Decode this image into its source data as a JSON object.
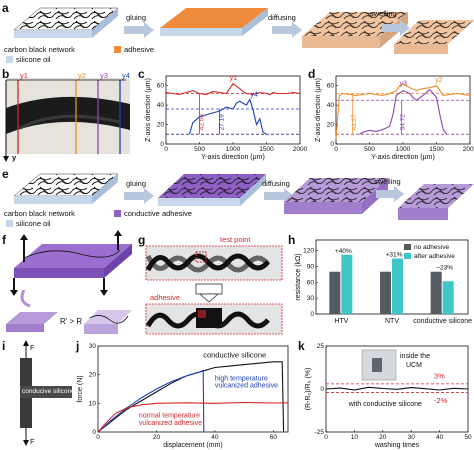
{
  "panel_a": {
    "label": "a",
    "steps": [
      "gluing",
      "diffusing",
      "swelling"
    ],
    "legend": [
      "carbon black network",
      "adhesive",
      "silicone oil"
    ],
    "colors": {
      "adhesive": "#f08a3c",
      "slab": "#c6d7ec",
      "diffused": "#f2c4a0"
    }
  },
  "panel_b": {
    "label": "b",
    "y_markers": [
      "y1",
      "y2",
      "y3",
      "y4"
    ],
    "axis": "y"
  },
  "panel_c": {
    "label": "c",
    "ylabel": "Z-axis direction (μm)",
    "xlabel": "Y-axis direction (μm)",
    "annotations": [
      "y1",
      "y4",
      "42.59",
      "27.19"
    ]
  },
  "panel_d": {
    "label": "d",
    "ylabel": "Z-axis direction (μm)",
    "xlabel": "Y-axis direction (μm)",
    "annotations": [
      "y2",
      "y3",
      "41.27",
      "34.72"
    ]
  },
  "panel_e": {
    "label": "e",
    "steps": [
      "gluing",
      "diffusing",
      "swelling"
    ],
    "legend": [
      "carbon black network",
      "conductive adhesive",
      "silicone oil"
    ]
  },
  "panel_f": {
    "label": "f",
    "relation": "R' > R"
  },
  "panel_g": {
    "label": "g",
    "test_point": "test point",
    "adhesive": "adhesive"
  },
  "panel_h": {
    "label": "h",
    "ylabel": "resistance (kΩ)",
    "legend": [
      "no adhesive",
      "after adhesive"
    ],
    "pct": [
      "+40%",
      "+31%",
      "−23%"
    ]
  },
  "panel_i": {
    "label": "i",
    "force": "F",
    "layers": [
      "silicone",
      "conducive silicone",
      "silicone"
    ]
  },
  "panel_j": {
    "label": "j",
    "ylabel": "force (N)",
    "xlabel": "displacement (mm)",
    "curves": [
      "conductive silicone",
      "high temperature vulcanized adhesive",
      "normal temperature vulcanized adhesive"
    ]
  },
  "panel_k": {
    "label": "k",
    "ylabel": "(R-R₀)/R₀ (%)",
    "xlabel": "washing times",
    "inset": "inside the UCM",
    "curve": "with conductive silicone",
    "pct_hi": "3%",
    "pct_lo": "-2%"
  },
  "chart_data": [
    {
      "type": "line",
      "id": "c",
      "xlabel": "Y-axis direction (μm)",
      "ylabel": "Z-axis direction (μm)",
      "xlim": [
        0,
        2000
      ],
      "ylim": [
        0,
        70
      ],
      "xticks": [
        0,
        500,
        1000,
        1500,
        2000
      ],
      "yticks": [
        0,
        20,
        40,
        60
      ],
      "series": [
        {
          "name": "y1",
          "color": "#d62728",
          "x": [
            0,
            100,
            200,
            300,
            400,
            500,
            600,
            700,
            800,
            900,
            1000,
            1100,
            1150,
            1200,
            1300,
            1400,
            1500,
            1550,
            1600,
            1650,
            1700,
            1800,
            1900,
            2000
          ],
          "y": [
            53,
            52,
            51,
            53,
            55,
            52,
            51,
            54,
            53,
            52,
            62,
            57,
            54,
            52,
            51,
            53,
            52,
            51,
            53,
            52,
            52,
            52,
            53,
            52
          ]
        },
        {
          "name": "y4",
          "color": "#1f3fbf",
          "x": [
            350,
            400,
            500,
            600,
            700,
            800,
            900,
            1000,
            1050,
            1100,
            1200,
            1250,
            1300,
            1350,
            1400,
            1450,
            1500
          ],
          "y": [
            10,
            22,
            28,
            30,
            32,
            34,
            38,
            36,
            42,
            44,
            40,
            46,
            35,
            20,
            26,
            12,
            10
          ]
        }
      ],
      "hlines": [
        {
          "y": 52,
          "color": "#d62728",
          "style": "dash"
        },
        {
          "y": 10,
          "color": "#d62728",
          "style": "dash"
        },
        {
          "y": 10,
          "color": "#1f3fbf",
          "style": "dash"
        },
        {
          "y": 36,
          "color": "#1f3fbf",
          "style": "dash"
        }
      ]
    },
    {
      "type": "line",
      "id": "d",
      "xlabel": "Y-axis direction (μm)",
      "ylabel": "Z-axis direction (μm)",
      "xlim": [
        0,
        2000
      ],
      "ylim": [
        0,
        70
      ],
      "xticks": [
        0,
        500,
        1000,
        1500,
        2000
      ],
      "yticks": [
        0,
        20,
        40,
        60
      ],
      "series": [
        {
          "name": "y2",
          "color": "#f08a24",
          "x": [
            0,
            50,
            100,
            200,
            300,
            400,
            500,
            600,
            700,
            800,
            900,
            950,
            1000,
            1100,
            1200,
            1300,
            1400,
            1500,
            1550,
            1600,
            1700,
            1800,
            1900,
            2000
          ],
          "y": [
            5,
            50,
            52,
            51,
            50,
            51,
            52,
            51,
            50,
            52,
            55,
            60,
            62,
            58,
            55,
            57,
            58,
            60,
            55,
            50,
            51,
            52,
            51,
            50
          ]
        },
        {
          "name": "y3",
          "color": "#8e44ad",
          "x": [
            350,
            400,
            500,
            600,
            700,
            800,
            850,
            900,
            1000,
            1100,
            1150,
            1200,
            1300,
            1400,
            1450,
            1500,
            1550,
            1600,
            1650
          ],
          "y": [
            10,
            12,
            14,
            13,
            15,
            18,
            30,
            50,
            55,
            52,
            48,
            45,
            50,
            56,
            52,
            48,
            30,
            15,
            10
          ]
        }
      ],
      "hlines": [
        {
          "y": 52,
          "color": "#f08a24",
          "style": "dash"
        },
        {
          "y": 10,
          "color": "#f08a24",
          "style": "dash"
        },
        {
          "y": 10,
          "color": "#8e44ad",
          "style": "dash"
        },
        {
          "y": 45,
          "color": "#8e44ad",
          "style": "dash"
        }
      ]
    },
    {
      "type": "bar",
      "id": "h",
      "ylabel": "resistance (kΩ)",
      "ylim": [
        0,
        140
      ],
      "yticks": [
        0,
        30,
        60,
        90,
        120
      ],
      "categories": [
        "HTV",
        "NTV",
        "conductive silicone"
      ],
      "series": [
        {
          "name": "no adhesive",
          "color": "#555a60",
          "values": [
            80,
            80,
            80
          ]
        },
        {
          "name": "after adhesive",
          "color": "#3fc6c6",
          "values": [
            112,
            105,
            62
          ]
        }
      ],
      "labels": [
        "+40%",
        "+31%",
        "−23%"
      ]
    },
    {
      "type": "line",
      "id": "j",
      "xlabel": "displacement (mm)",
      "ylabel": "force (N)",
      "xlim": [
        0,
        65
      ],
      "ylim": [
        0,
        30
      ],
      "xticks": [
        0,
        20,
        40,
        60
      ],
      "yticks": [
        0,
        10,
        20,
        30
      ],
      "series": [
        {
          "name": "conductive silicone",
          "color": "#111111",
          "x": [
            0,
            5,
            10,
            15,
            20,
            25,
            30,
            35,
            40,
            45,
            50,
            55,
            60,
            63,
            63.5
          ],
          "y": [
            0,
            4,
            8,
            11,
            14,
            17,
            19.5,
            21,
            22.5,
            23,
            23.5,
            24,
            24.5,
            24.5,
            0
          ]
        },
        {
          "name": "high temperature vulcanized adhesive",
          "color": "#1f3fbf",
          "x": [
            0,
            5,
            10,
            15,
            20,
            25,
            30,
            35,
            36,
            36.2
          ],
          "y": [
            0,
            4.5,
            8.5,
            12,
            15,
            17.5,
            19.5,
            21,
            21.5,
            0
          ]
        },
        {
          "name": "normal temperature vulcanized adhesive",
          "color": "#d62728",
          "x": [
            0,
            3,
            6,
            10,
            15,
            20,
            30,
            40,
            50,
            60,
            65
          ],
          "y": [
            0,
            3.5,
            6.5,
            8.5,
            9.5,
            10,
            10.2,
            10,
            10.3,
            10.1,
            10.2
          ]
        }
      ]
    },
    {
      "type": "line",
      "id": "k",
      "xlabel": "washing times",
      "ylabel": "(R-R₀)/R₀ (%)",
      "xlim": [
        0,
        50
      ],
      "ylim": [
        -25,
        25
      ],
      "xticks": [
        0,
        10,
        20,
        30,
        40,
        50
      ],
      "yticks": [
        -25,
        0,
        25
      ],
      "series": [
        {
          "name": "with conductive silicone",
          "color": "#111111",
          "x": [
            0,
            5,
            10,
            15,
            20,
            25,
            30,
            35,
            40,
            45,
            50
          ],
          "y": [
            0,
            0.5,
            -0.5,
            1,
            0.3,
            -0.2,
            0.8,
            0.2,
            -0.6,
            0.4,
            0
          ]
        }
      ],
      "hlines": [
        {
          "y": 3,
          "color": "#d62728",
          "style": "dash"
        },
        {
          "y": -2,
          "color": "#d62728",
          "style": "dash"
        }
      ]
    }
  ]
}
